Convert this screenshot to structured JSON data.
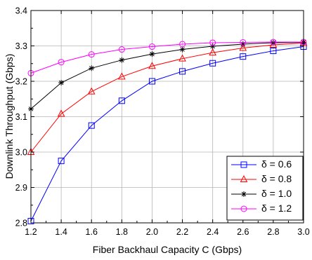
{
  "chart_data": {
    "type": "line",
    "title": "",
    "xlabel": "Fiber Backhaul Capacity C  (Gbps)",
    "ylabel": "Downlink Throughput (Gbps)",
    "xlim": [
      1.2,
      3.0
    ],
    "ylim": [
      2.8,
      3.4
    ],
    "x": [
      1.2,
      1.4,
      1.6,
      1.8,
      2.0,
      2.2,
      2.4,
      2.6,
      2.8,
      3.0
    ],
    "x_ticks": [
      "1.2",
      "1.4",
      "1.6",
      "1.8",
      "2.0",
      "2.2",
      "2.4",
      "2.6",
      "2.8",
      "3.0"
    ],
    "y_ticks": [
      "2.8",
      "2.9",
      "3.0",
      "3.1",
      "3.2",
      "3.3",
      "3.4"
    ],
    "grid": true,
    "legend_position": "bottom-right",
    "series": [
      {
        "name": "δ = 0.6",
        "color": "#0000ff",
        "marker": "square",
        "values": [
          2.805,
          2.975,
          3.075,
          3.145,
          3.2,
          3.228,
          3.251,
          3.27,
          3.286,
          3.298
        ]
      },
      {
        "name": "δ = 0.8",
        "color": "#ff0000",
        "marker": "triangle",
        "values": [
          3.0,
          3.108,
          3.171,
          3.213,
          3.243,
          3.264,
          3.281,
          3.294,
          3.303,
          3.308
        ]
      },
      {
        "name": "δ = 1.0",
        "color": "#000000",
        "marker": "asterisk",
        "values": [
          3.122,
          3.196,
          3.237,
          3.26,
          3.277,
          3.29,
          3.299,
          3.305,
          3.309,
          3.31
        ]
      },
      {
        "name": "δ = 1.2",
        "color": "#ff00ff",
        "marker": "circle",
        "values": [
          3.223,
          3.254,
          3.276,
          3.29,
          3.298,
          3.305,
          3.309,
          3.31,
          3.311,
          3.311
        ]
      }
    ]
  }
}
